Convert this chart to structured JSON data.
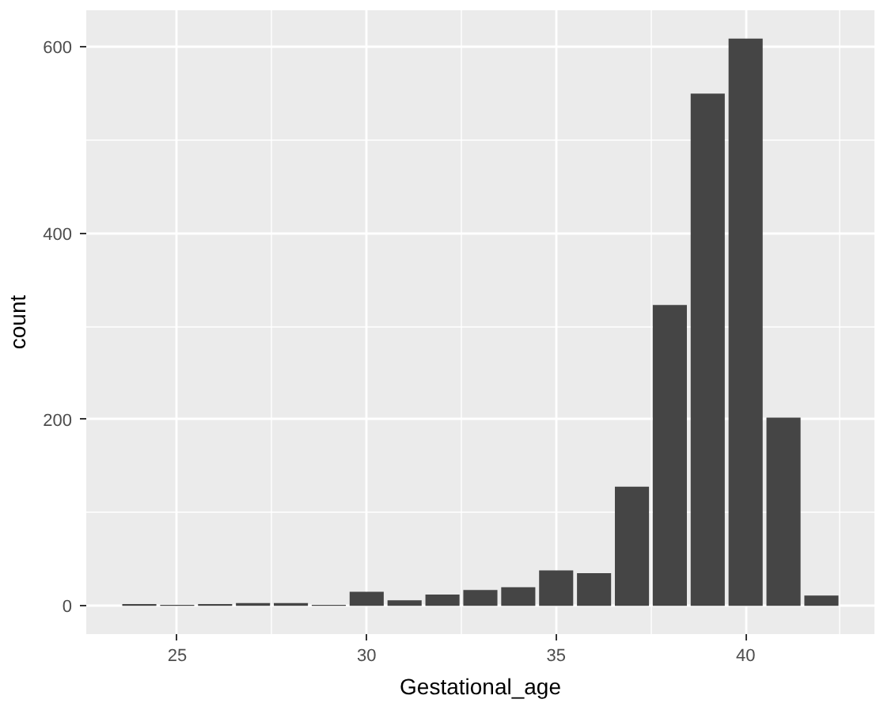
{
  "chart_data": {
    "type": "bar",
    "xlabel": "Gestational_age",
    "ylabel": "count",
    "x": [
      24,
      25,
      26,
      27,
      28,
      29,
      30,
      31,
      32,
      33,
      34,
      35,
      36,
      37,
      38,
      39,
      40,
      41,
      42
    ],
    "values": [
      2,
      1,
      2,
      3,
      3,
      1,
      15,
      6,
      12,
      17,
      20,
      38,
      35,
      128,
      323,
      550,
      609,
      202,
      11
    ],
    "color": "#454545",
    "xlim": [
      22.6,
      43.4
    ],
    "ylim": [
      -30.4,
      639.4
    ],
    "xticks": [
      25,
      30,
      35,
      40
    ],
    "yticks": [
      0,
      200,
      400,
      600
    ],
    "grid": true
  }
}
